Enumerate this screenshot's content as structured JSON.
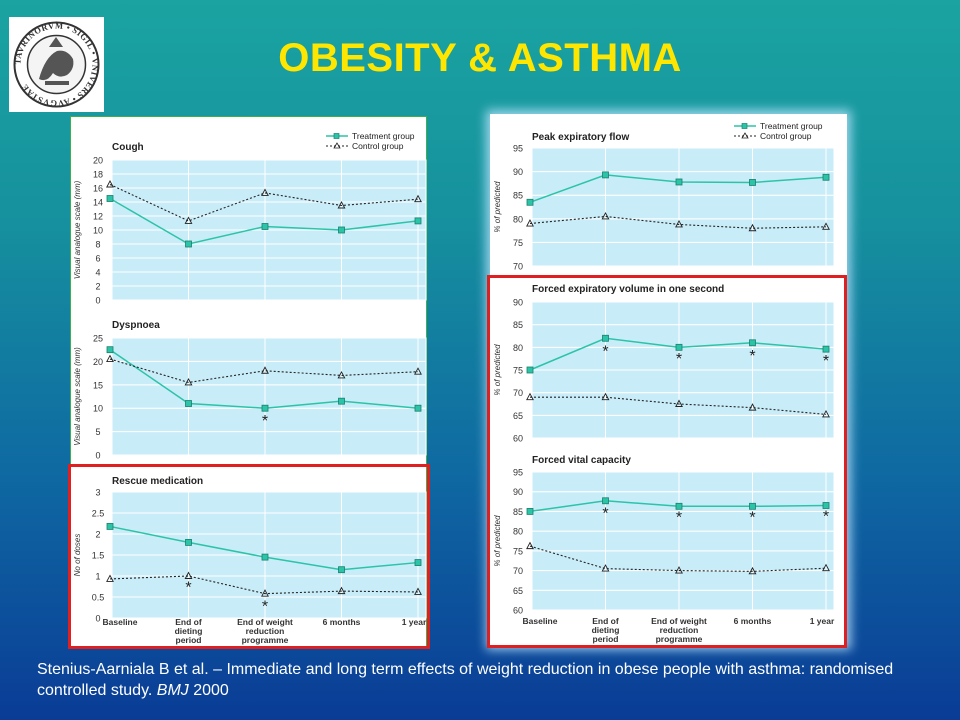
{
  "slide": {
    "title": "OBESITY & ASTHMA",
    "logo": {
      "icon": "university-seal",
      "text": "TAVRINORVM • SIGIL • VNIVERS • AVGVSTAE"
    },
    "citation": {
      "text": "Stenius-Aarniala B et al. – Immediate and long term effects of weight reduction in obese people with asthma: randomised controlled study.",
      "journal": "BMJ",
      "year": "2000"
    }
  },
  "colors": {
    "treatment": "#2bc4a8",
    "control": "#222222",
    "plot_band": "#c8ecf8",
    "title": "#ffe600",
    "highlight_box": "#e02020"
  },
  "chart_data": [
    {
      "type": "line",
      "title": "Cough",
      "ylabel": "Visual analogue scale (mm)",
      "ylim": [
        0,
        20
      ],
      "yticks": [
        "0",
        "2",
        "4",
        "6",
        "8",
        "10",
        "12",
        "14",
        "16",
        "18",
        "20"
      ],
      "categories": [
        "Baseline",
        "End of dieting period",
        "End of weight reduction programme",
        "6 months",
        "1 year"
      ],
      "legend": [
        "Treatment group",
        "Control group"
      ],
      "series": [
        {
          "name": "Treatment group",
          "values": [
            14.5,
            8,
            10.5,
            10,
            11.3
          ]
        },
        {
          "name": "Control group",
          "values": [
            16.5,
            11.3,
            15.3,
            13.5,
            14.4
          ]
        }
      ],
      "stars": []
    },
    {
      "type": "line",
      "title": "Dyspnoea",
      "ylabel": "Visual analogue scale (mm)",
      "ylim": [
        0,
        25
      ],
      "yticks": [
        "0",
        "5",
        "10",
        "15",
        "20",
        "25"
      ],
      "categories": [
        "Baseline",
        "End of dieting period",
        "End of weight reduction programme",
        "6 months",
        "1 year"
      ],
      "series": [
        {
          "name": "Treatment group",
          "values": [
            22.5,
            11,
            10,
            11.5,
            10
          ]
        },
        {
          "name": "Control group",
          "values": [
            20.5,
            15.5,
            18,
            17,
            17.8
          ]
        }
      ],
      "stars": [
        {
          "x": 2,
          "y": 7.5
        }
      ]
    },
    {
      "type": "line",
      "title": "Rescue medication",
      "ylabel": "No of doses",
      "ylim": [
        0,
        3
      ],
      "yticks": [
        "0",
        "0.5",
        "1",
        "1.5",
        "2",
        "2.5",
        "3"
      ],
      "categories": [
        "Baseline",
        "End of dieting period",
        "End of weight reduction programme",
        "6 months",
        "1 year"
      ],
      "series": [
        {
          "name": "Treatment group",
          "values": [
            2.18,
            1.8,
            1.45,
            1.15,
            1.32
          ]
        },
        {
          "name": "Control group",
          "values": [
            0.93,
            1.0,
            0.58,
            0.64,
            0.62
          ]
        }
      ],
      "stars": [
        {
          "x": 1,
          "y": 0.75
        },
        {
          "x": 2,
          "y": 0.3
        }
      ]
    },
    {
      "type": "line",
      "title": "Peak expiratory flow",
      "ylabel": "% of predicted",
      "ylim": [
        70,
        95
      ],
      "yticks": [
        "70",
        "75",
        "80",
        "85",
        "90",
        "95"
      ],
      "categories": [
        "Baseline",
        "End of dieting period",
        "End of weight reduction programme",
        "6 months",
        "1 year"
      ],
      "legend": [
        "Treatment group",
        "Control group"
      ],
      "series": [
        {
          "name": "Treatment group",
          "values": [
            83.5,
            89.3,
            87.8,
            87.7,
            88.8
          ]
        },
        {
          "name": "Control group",
          "values": [
            79,
            80.5,
            78.8,
            78,
            78.3
          ]
        }
      ],
      "stars": []
    },
    {
      "type": "line",
      "title": "Forced expiratory volume in one second",
      "ylabel": "% of predicted",
      "ylim": [
        60,
        90
      ],
      "yticks": [
        "60",
        "65",
        "70",
        "75",
        "80",
        "85",
        "90"
      ],
      "categories": [
        "Baseline",
        "End of dieting period",
        "End of weight reduction programme",
        "6 months",
        "1 year"
      ],
      "series": [
        {
          "name": "Treatment group",
          "values": [
            75,
            82,
            80,
            81,
            79.6
          ]
        },
        {
          "name": "Control group",
          "values": [
            69,
            69,
            67.5,
            66.7,
            65.2
          ]
        }
      ],
      "stars": [
        {
          "x": 1,
          "y": 79.3
        },
        {
          "x": 2,
          "y": 77.7
        },
        {
          "x": 3,
          "y": 78.3
        },
        {
          "x": 4,
          "y": 77.2
        }
      ]
    },
    {
      "type": "line",
      "title": "Forced vital capacity",
      "ylabel": "% of predicted",
      "ylim": [
        60,
        95
      ],
      "yticks": [
        "60",
        "65",
        "70",
        "75",
        "80",
        "85",
        "90",
        "95"
      ],
      "categories": [
        "Baseline",
        "End of dieting period",
        "End of weight reduction programme",
        "6 months",
        "1 year"
      ],
      "series": [
        {
          "name": "Treatment group",
          "values": [
            85,
            87.7,
            86.3,
            86.3,
            86.5
          ]
        },
        {
          "name": "Control group",
          "values": [
            76.2,
            70.5,
            70,
            69.8,
            70.6
          ]
        }
      ],
      "stars": [
        {
          "x": 1,
          "y": 84.7
        },
        {
          "x": 2,
          "y": 83.7
        },
        {
          "x": 3,
          "y": 83.7
        },
        {
          "x": 4,
          "y": 84
        }
      ]
    }
  ],
  "x_axis": {
    "left_labels": [
      [
        "Baseline"
      ],
      [
        "End of",
        "dieting",
        "period"
      ],
      [
        "End of weight",
        "reduction",
        "programme"
      ],
      [
        "6 months"
      ],
      [
        "1 year"
      ]
    ],
    "right_labels": [
      [
        "Baseline"
      ],
      [
        "End of",
        "dieting",
        "period"
      ],
      [
        "End of weight",
        "reduction",
        "programme"
      ],
      [
        "6 months"
      ],
      [
        "1 year"
      ]
    ]
  }
}
